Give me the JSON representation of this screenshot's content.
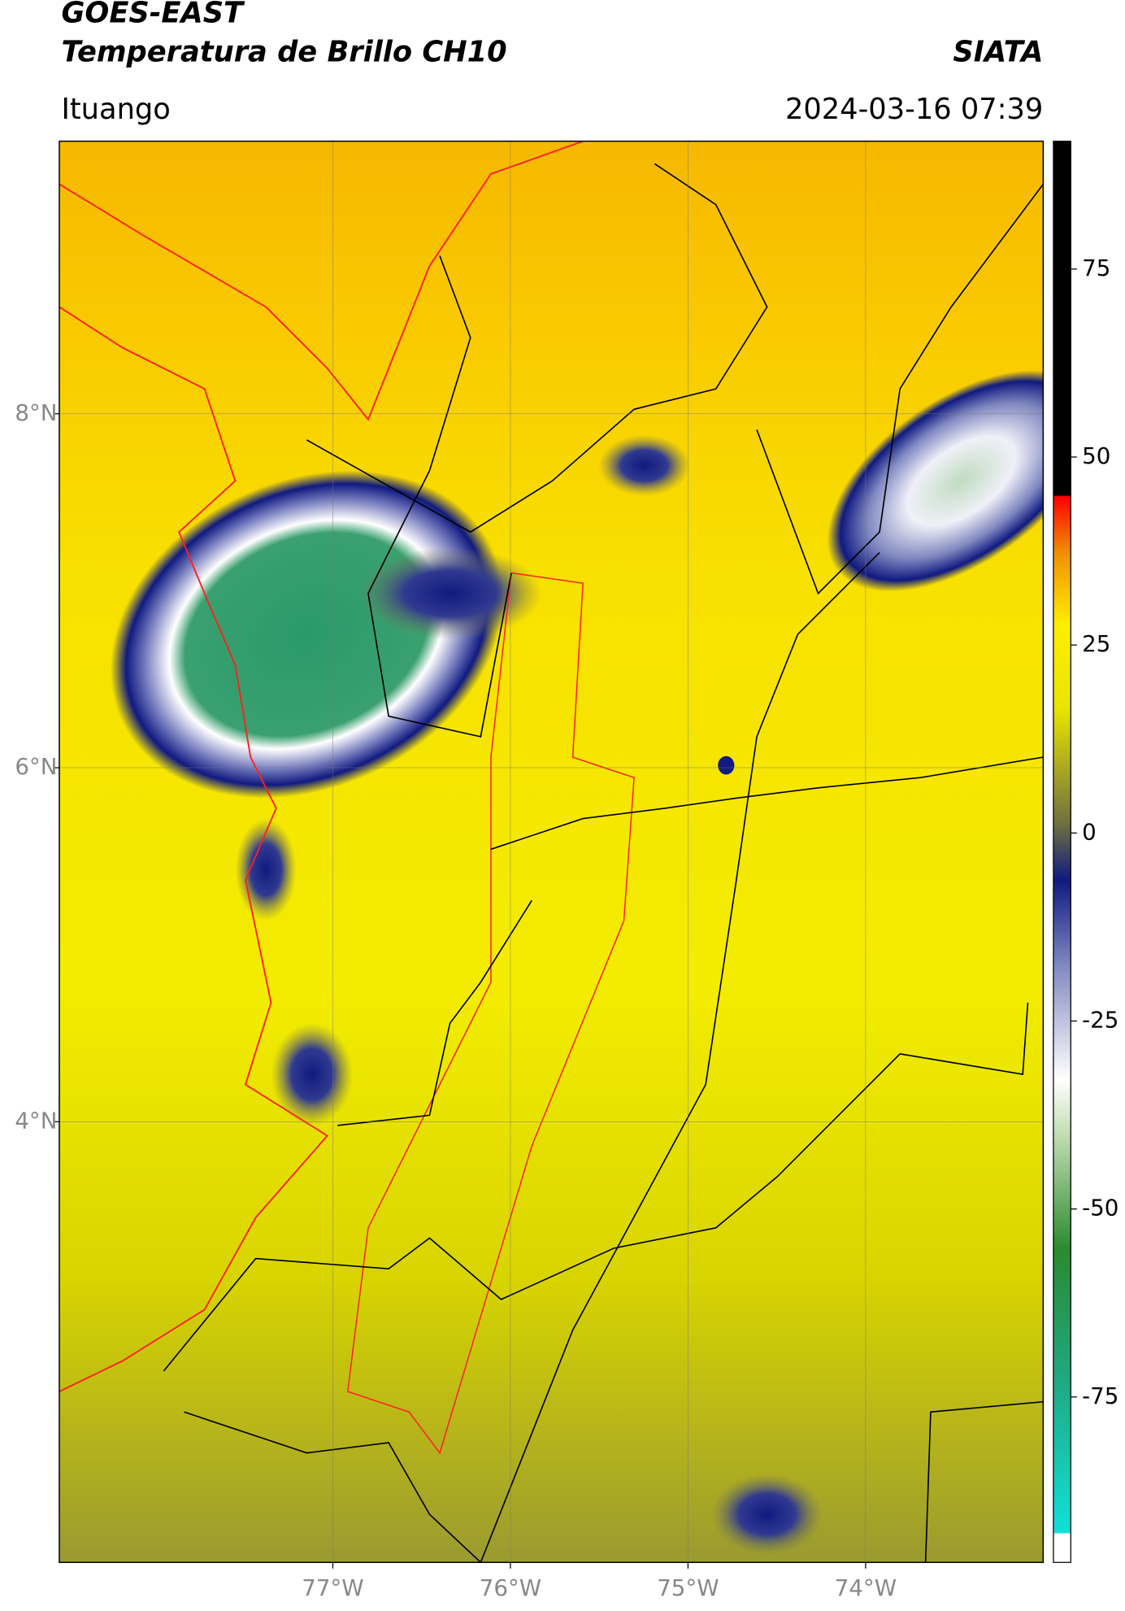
{
  "header": {
    "title": "GOES-EAST",
    "subtitle": "Temperatura de Brillo CH10",
    "agency": "SIATA",
    "location": "Ituango",
    "datetime": "2024-03-16 07:39"
  },
  "map": {
    "xlim": [
      -78.54,
      -73.0
    ],
    "ylim": [
      1.51,
      9.54
    ],
    "xticks": [
      {
        "value": -77,
        "label": "77°W"
      },
      {
        "value": -76,
        "label": "76°W"
      },
      {
        "value": -75,
        "label": "75°W"
      },
      {
        "value": -74,
        "label": "74°W"
      }
    ],
    "yticks": [
      {
        "value": 8,
        "label": "8°N"
      },
      {
        "value": 6,
        "label": "6°N"
      },
      {
        "value": 4,
        "label": "4°N"
      }
    ]
  },
  "colorbar": {
    "lim": [
      -97,
      92
    ],
    "ticks": [
      75,
      50,
      25,
      0,
      -25,
      -50,
      -75
    ]
  }
}
